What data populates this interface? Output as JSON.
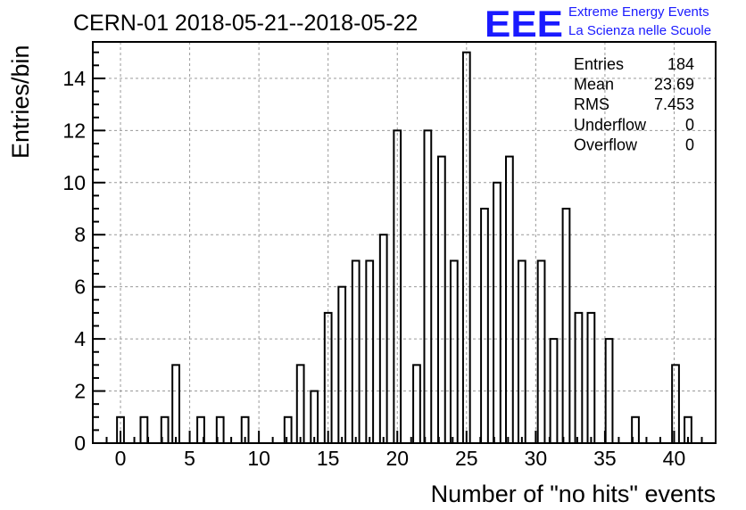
{
  "chart_data": {
    "type": "bar",
    "title": "CERN-01 2018-05-21--2018-05-22",
    "xlabel": "Number of \"no hits\" events",
    "ylabel": "Entries/bin",
    "xlim": [
      -2,
      43
    ],
    "ylim": [
      0,
      15.4
    ],
    "bin_width": 0.5,
    "x_ticks": [
      0,
      5,
      10,
      15,
      20,
      25,
      30,
      35,
      40
    ],
    "y_ticks": [
      0,
      2,
      4,
      6,
      8,
      10,
      12,
      14
    ],
    "grid": true,
    "bars": [
      {
        "x": 0,
        "y": 1
      },
      {
        "x": 1.7,
        "y": 1
      },
      {
        "x": 3.2,
        "y": 1
      },
      {
        "x": 4,
        "y": 3
      },
      {
        "x": 5.8,
        "y": 1
      },
      {
        "x": 7.2,
        "y": 1
      },
      {
        "x": 9,
        "y": 1
      },
      {
        "x": 12.1,
        "y": 1
      },
      {
        "x": 13,
        "y": 3
      },
      {
        "x": 14,
        "y": 2
      },
      {
        "x": 15,
        "y": 5
      },
      {
        "x": 16,
        "y": 6
      },
      {
        "x": 17,
        "y": 7
      },
      {
        "x": 18,
        "y": 7
      },
      {
        "x": 19,
        "y": 8
      },
      {
        "x": 20,
        "y": 12
      },
      {
        "x": 21.4,
        "y": 3
      },
      {
        "x": 22.2,
        "y": 12
      },
      {
        "x": 23.2,
        "y": 11
      },
      {
        "x": 24.1,
        "y": 7
      },
      {
        "x": 25,
        "y": 15
      },
      {
        "x": 26.3,
        "y": 9
      },
      {
        "x": 27.2,
        "y": 10
      },
      {
        "x": 28.1,
        "y": 11
      },
      {
        "x": 29,
        "y": 7
      },
      {
        "x": 30.4,
        "y": 7
      },
      {
        "x": 31.3,
        "y": 4
      },
      {
        "x": 32.2,
        "y": 9
      },
      {
        "x": 33.1,
        "y": 5
      },
      {
        "x": 34,
        "y": 5
      },
      {
        "x": 35.3,
        "y": 4
      },
      {
        "x": 37.2,
        "y": 1
      },
      {
        "x": 40.1,
        "y": 3
      },
      {
        "x": 41,
        "y": 1
      }
    ],
    "stats": [
      {
        "label": "Entries",
        "value": "184"
      },
      {
        "label": "Mean",
        "value": "23.69"
      },
      {
        "label": "RMS",
        "value": "7.453"
      },
      {
        "label": "Underflow",
        "value": "0"
      },
      {
        "label": "Overflow",
        "value": "0"
      }
    ]
  },
  "logo": {
    "mark": "EEE",
    "line1": "Extreme Energy Events",
    "line2": "La Scienza nelle Scuole",
    "color": "#1a1aff"
  }
}
